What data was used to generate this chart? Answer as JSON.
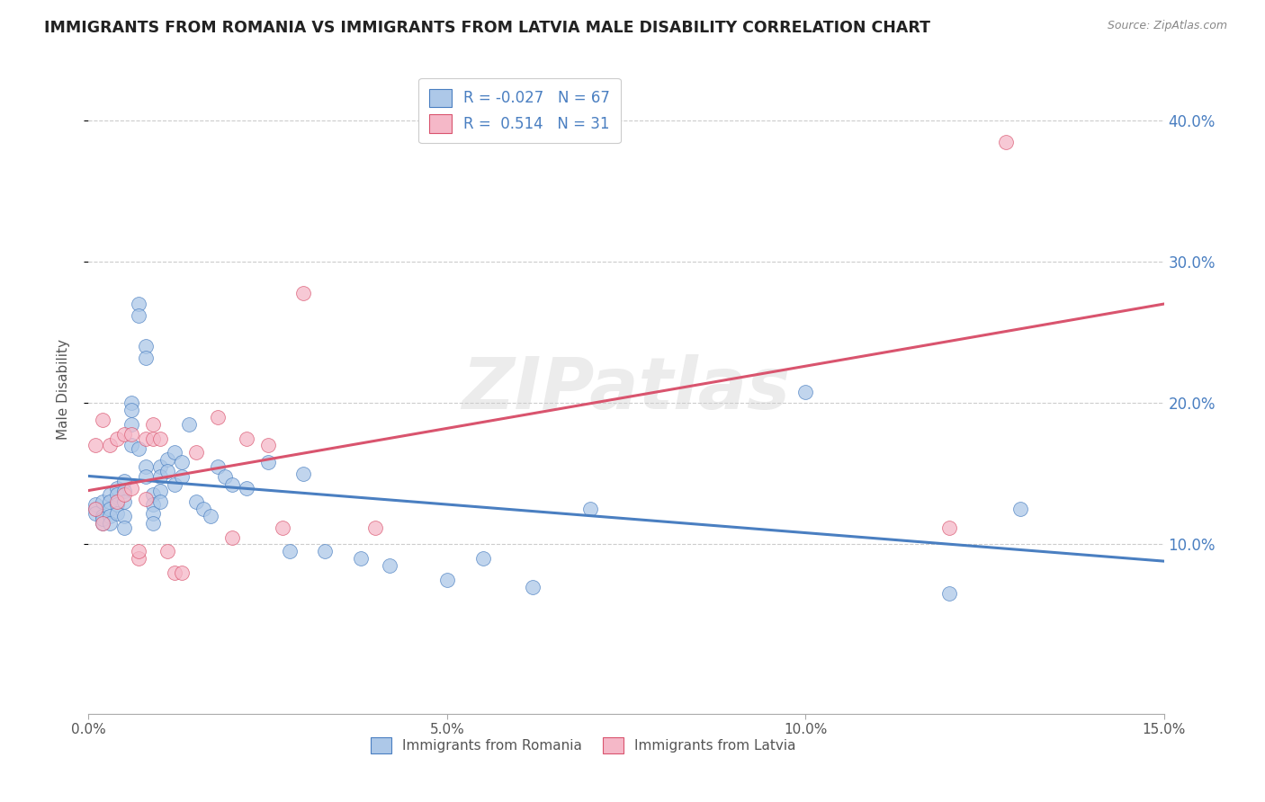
{
  "title": "IMMIGRANTS FROM ROMANIA VS IMMIGRANTS FROM LATVIA MALE DISABILITY CORRELATION CHART",
  "source": "Source: ZipAtlas.com",
  "ylabel": "Male Disability",
  "xlim": [
    0.0,
    0.15
  ],
  "ylim": [
    -0.02,
    0.44
  ],
  "xticks": [
    0.0,
    0.05,
    0.1,
    0.15
  ],
  "xtick_labels": [
    "0.0%",
    "5.0%",
    "10.0%",
    "15.0%"
  ],
  "yticks": [
    0.1,
    0.2,
    0.3,
    0.4
  ],
  "ytick_labels": [
    "10.0%",
    "20.0%",
    "30.0%",
    "40.0%"
  ],
  "legend_R_romania": "-0.027",
  "legend_N_romania": "67",
  "legend_R_latvia": "0.514",
  "legend_N_latvia": "31",
  "color_romania": "#adc8e8",
  "color_latvia": "#f5b8c8",
  "line_color_romania": "#4a7fc1",
  "line_color_latvia": "#d9546e",
  "watermark": "ZIPatlas",
  "romania_x": [
    0.001,
    0.001,
    0.001,
    0.002,
    0.002,
    0.002,
    0.002,
    0.003,
    0.003,
    0.003,
    0.003,
    0.003,
    0.004,
    0.004,
    0.004,
    0.004,
    0.005,
    0.005,
    0.005,
    0.005,
    0.005,
    0.006,
    0.006,
    0.006,
    0.006,
    0.007,
    0.007,
    0.007,
    0.008,
    0.008,
    0.008,
    0.008,
    0.009,
    0.009,
    0.009,
    0.009,
    0.01,
    0.01,
    0.01,
    0.01,
    0.011,
    0.011,
    0.012,
    0.012,
    0.013,
    0.013,
    0.014,
    0.015,
    0.016,
    0.017,
    0.018,
    0.019,
    0.02,
    0.022,
    0.025,
    0.028,
    0.03,
    0.033,
    0.038,
    0.042,
    0.05,
    0.055,
    0.062,
    0.07,
    0.1,
    0.12,
    0.13
  ],
  "romania_y": [
    0.125,
    0.128,
    0.122,
    0.13,
    0.12,
    0.115,
    0.118,
    0.135,
    0.13,
    0.125,
    0.12,
    0.115,
    0.14,
    0.135,
    0.128,
    0.122,
    0.145,
    0.138,
    0.13,
    0.12,
    0.112,
    0.2,
    0.195,
    0.185,
    0.17,
    0.27,
    0.262,
    0.168,
    0.24,
    0.232,
    0.155,
    0.148,
    0.135,
    0.128,
    0.122,
    0.115,
    0.155,
    0.148,
    0.138,
    0.13,
    0.16,
    0.152,
    0.165,
    0.142,
    0.158,
    0.148,
    0.185,
    0.13,
    0.125,
    0.12,
    0.155,
    0.148,
    0.142,
    0.14,
    0.158,
    0.095,
    0.15,
    0.095,
    0.09,
    0.085,
    0.075,
    0.09,
    0.07,
    0.125,
    0.208,
    0.065,
    0.125
  ],
  "latvia_x": [
    0.001,
    0.001,
    0.002,
    0.002,
    0.003,
    0.004,
    0.004,
    0.005,
    0.005,
    0.006,
    0.006,
    0.007,
    0.007,
    0.008,
    0.008,
    0.009,
    0.009,
    0.01,
    0.011,
    0.012,
    0.013,
    0.015,
    0.018,
    0.02,
    0.022,
    0.025,
    0.027,
    0.03,
    0.04,
    0.12,
    0.128
  ],
  "latvia_y": [
    0.125,
    0.17,
    0.115,
    0.188,
    0.17,
    0.175,
    0.13,
    0.178,
    0.135,
    0.178,
    0.14,
    0.09,
    0.095,
    0.132,
    0.175,
    0.185,
    0.175,
    0.175,
    0.095,
    0.08,
    0.08,
    0.165,
    0.19,
    0.105,
    0.175,
    0.17,
    0.112,
    0.278,
    0.112,
    0.112,
    0.385
  ]
}
